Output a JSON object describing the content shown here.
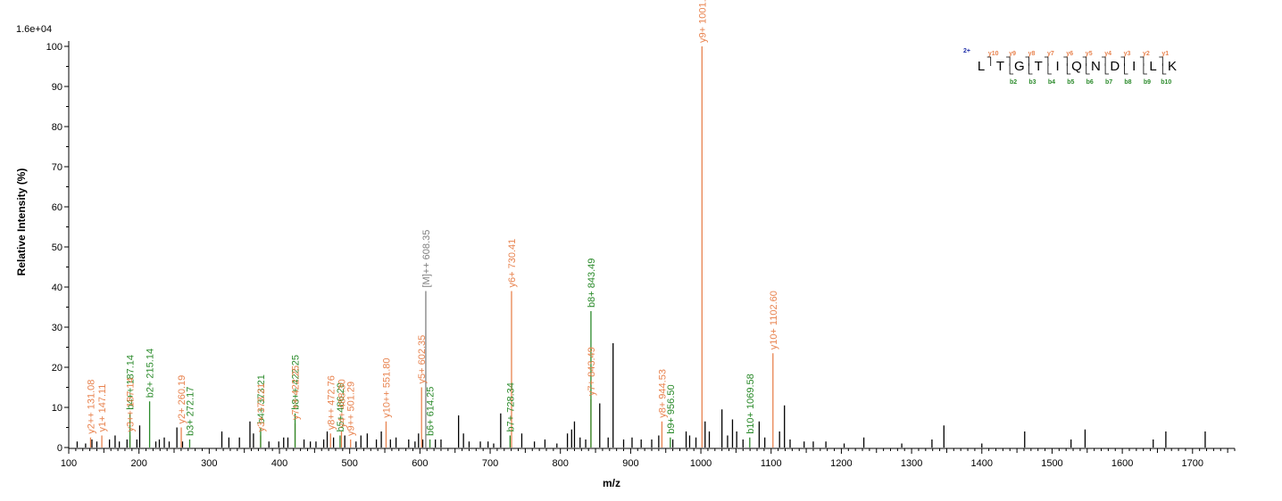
{
  "chart_data": {
    "type": "bar",
    "subtype": "mass-spectrum",
    "xlabel": "m/z",
    "ylabel": "Relative   Intensity (%)",
    "scale_label": "1.6e+04",
    "xlim": [
      100,
      1760
    ],
    "ylim": [
      0,
      100
    ],
    "xticks": [
      100,
      200,
      300,
      400,
      500,
      600,
      700,
      800,
      900,
      1000,
      1100,
      1200,
      1300,
      1400,
      1500,
      1600,
      1700
    ],
    "yticks": [
      0,
      10,
      20,
      30,
      40,
      50,
      60,
      70,
      80,
      90,
      100
    ],
    "colors": {
      "y_ion": "#e8834f",
      "b_ion": "#2a8a2a",
      "precursor": "#808080",
      "unassigned": "#000000",
      "charge": "#1f2ea8"
    },
    "annotated_peaks": [
      {
        "mz": 131.08,
        "intensity": 2.5,
        "label": "y2++ 131.08",
        "series": "y"
      },
      {
        "mz": 147.11,
        "intensity": 3.0,
        "label": "y1+ 147.11",
        "series": "y"
      },
      {
        "mz": 187.14,
        "intensity": 8.5,
        "label": "b4++ 187.14",
        "series": "b"
      },
      {
        "mz": 187.14,
        "intensity": 3.0,
        "label": "y3++ 187.14",
        "series": "y"
      },
      {
        "mz": 215.14,
        "intensity": 11.5,
        "label": "b2+ 215.14",
        "series": "b"
      },
      {
        "mz": 260.19,
        "intensity": 5.0,
        "label": "y2+ 260.19",
        "series": "y"
      },
      {
        "mz": 272.17,
        "intensity": 2.0,
        "label": "b3+ 272.17",
        "series": "b"
      },
      {
        "mz": 373.21,
        "intensity": 5.0,
        "label": "b4+ 373.21",
        "series": "b"
      },
      {
        "mz": 373.21,
        "intensity": 3.0,
        "label": "y3+ 373.21",
        "series": "y"
      },
      {
        "mz": 422.25,
        "intensity": 8.5,
        "label": "b8++ 422.25",
        "series": "b"
      },
      {
        "mz": 422.25,
        "intensity": 6.0,
        "label": "y7++ 422.25",
        "series": "y"
      },
      {
        "mz": 472.76,
        "intensity": 3.5,
        "label": "y8++ 472.76",
        "series": "y"
      },
      {
        "mz": 486.29,
        "intensity": 3.0,
        "label": "b5+ 486.29",
        "series": "b"
      },
      {
        "mz": 488.3,
        "intensity": 4.0,
        "label": "y4+ 488.30",
        "series": "y"
      },
      {
        "mz": 501.29,
        "intensity": 2.0,
        "label": "y9++ 501.29",
        "series": "y"
      },
      {
        "mz": 551.8,
        "intensity": 6.5,
        "label": "y10++ 551.80",
        "series": "y"
      },
      {
        "mz": 602.35,
        "intensity": 15.0,
        "label": "y5+ 602.35",
        "series": "y"
      },
      {
        "mz": 608.35,
        "intensity": 39.0,
        "label": "[M]++ 608.35",
        "series": "precursor"
      },
      {
        "mz": 614.25,
        "intensity": 2.0,
        "label": "b6+ 614.25",
        "series": "b"
      },
      {
        "mz": 728.34,
        "intensity": 3.0,
        "label": "b7+ 728.34",
        "series": "b"
      },
      {
        "mz": 730.41,
        "intensity": 39.0,
        "label": "y6+ 730.41",
        "series": "y"
      },
      {
        "mz": 843.49,
        "intensity": 34.0,
        "label": "b8+ 843.49",
        "series": "b"
      },
      {
        "mz": 843.49,
        "intensity": 12.0,
        "label": "y7+ 843.49",
        "series": "y"
      },
      {
        "mz": 944.53,
        "intensity": 6.5,
        "label": "y8+ 944.53",
        "series": "y"
      },
      {
        "mz": 956.5,
        "intensity": 2.5,
        "label": "b9+ 956.50",
        "series": "b"
      },
      {
        "mz": 1001.57,
        "intensity": 100.0,
        "label": "y9+ 1001.57",
        "series": "y"
      },
      {
        "mz": 1069.58,
        "intensity": 2.5,
        "label": "b10+ 1069.58",
        "series": "b"
      },
      {
        "mz": 1102.6,
        "intensity": 23.5,
        "label": "y10+ 1102.60",
        "series": "y"
      }
    ],
    "unassigned_peaks": [
      [
        112,
        1.5
      ],
      [
        124,
        1.0
      ],
      [
        133,
        2.0
      ],
      [
        140,
        1.5
      ],
      [
        158,
        2.0
      ],
      [
        166,
        3.0
      ],
      [
        172,
        1.5
      ],
      [
        183,
        2.0
      ],
      [
        197,
        2.0
      ],
      [
        201,
        5.5
      ],
      [
        224,
        1.5
      ],
      [
        229,
        2.0
      ],
      [
        236,
        2.5
      ],
      [
        243,
        1.5
      ],
      [
        254,
        5.0
      ],
      [
        262,
        1.5
      ],
      [
        318,
        4.0
      ],
      [
        328,
        2.5
      ],
      [
        343,
        2.5
      ],
      [
        358,
        6.5
      ],
      [
        363,
        3.5
      ],
      [
        385,
        1.5
      ],
      [
        399,
        1.5
      ],
      [
        406,
        2.5
      ],
      [
        412,
        2.5
      ],
      [
        435,
        2.0
      ],
      [
        444,
        1.5
      ],
      [
        452,
        1.5
      ],
      [
        463,
        2.0
      ],
      [
        468,
        4.0
      ],
      [
        477,
        2.5
      ],
      [
        493,
        3.0
      ],
      [
        509,
        1.5
      ],
      [
        516,
        3.0
      ],
      [
        525,
        3.5
      ],
      [
        538,
        2.0
      ],
      [
        545,
        4.0
      ],
      [
        558,
        2.0
      ],
      [
        566,
        2.5
      ],
      [
        584,
        2.0
      ],
      [
        593,
        1.5
      ],
      [
        598,
        3.5
      ],
      [
        604,
        2.0
      ],
      [
        622,
        2.0
      ],
      [
        630,
        2.0
      ],
      [
        655,
        8.0
      ],
      [
        662,
        3.5
      ],
      [
        670,
        1.5
      ],
      [
        686,
        1.5
      ],
      [
        697,
        1.5
      ],
      [
        705,
        1.0
      ],
      [
        715,
        8.5
      ],
      [
        745,
        3.5
      ],
      [
        763,
        1.5
      ],
      [
        778,
        2.0
      ],
      [
        795,
        1.0
      ],
      [
        810,
        3.5
      ],
      [
        816,
        4.5
      ],
      [
        820,
        6.5
      ],
      [
        828,
        2.5
      ],
      [
        836,
        2.0
      ],
      [
        856,
        11.0
      ],
      [
        868,
        2.5
      ],
      [
        875,
        26.0
      ],
      [
        890,
        2.0
      ],
      [
        902,
        2.5
      ],
      [
        915,
        2.0
      ],
      [
        930,
        2.0
      ],
      [
        940,
        3.0
      ],
      [
        960,
        2.0
      ],
      [
        979,
        4.0
      ],
      [
        984,
        3.0
      ],
      [
        993,
        2.5
      ],
      [
        1006,
        6.5
      ],
      [
        1012,
        4.0
      ],
      [
        1030,
        9.5
      ],
      [
        1038,
        3.0
      ],
      [
        1045,
        7.0
      ],
      [
        1051,
        4.0
      ],
      [
        1060,
        2.0
      ],
      [
        1083,
        6.5
      ],
      [
        1091,
        2.5
      ],
      [
        1112,
        4.0
      ],
      [
        1119,
        10.5
      ],
      [
        1127,
        2.0
      ],
      [
        1147,
        1.5
      ],
      [
        1160,
        1.5
      ],
      [
        1178,
        1.5
      ],
      [
        1204,
        1.0
      ],
      [
        1232,
        2.5
      ],
      [
        1286,
        1.0
      ],
      [
        1329,
        2.0
      ],
      [
        1346,
        5.5
      ],
      [
        1400,
        1.0
      ],
      [
        1461,
        4.0
      ],
      [
        1527,
        2.0
      ],
      [
        1547,
        4.5
      ],
      [
        1644,
        2.0
      ],
      [
        1662,
        4.0
      ],
      [
        1718,
        4.0
      ]
    ],
    "sequence": {
      "charge_label": "2+",
      "residues": [
        "L",
        "T",
        "G",
        "T",
        "I",
        "Q",
        "N",
        "D",
        "I",
        "L",
        "K"
      ],
      "y_labels": [
        "y10",
        "y9",
        "y8",
        "y7",
        "y6",
        "y5",
        "y4",
        "y3",
        "y2",
        "y1"
      ],
      "b_labels": [
        "b2",
        "b3",
        "b4",
        "b5",
        "b6",
        "b7",
        "b8",
        "b9",
        "b10"
      ]
    }
  }
}
